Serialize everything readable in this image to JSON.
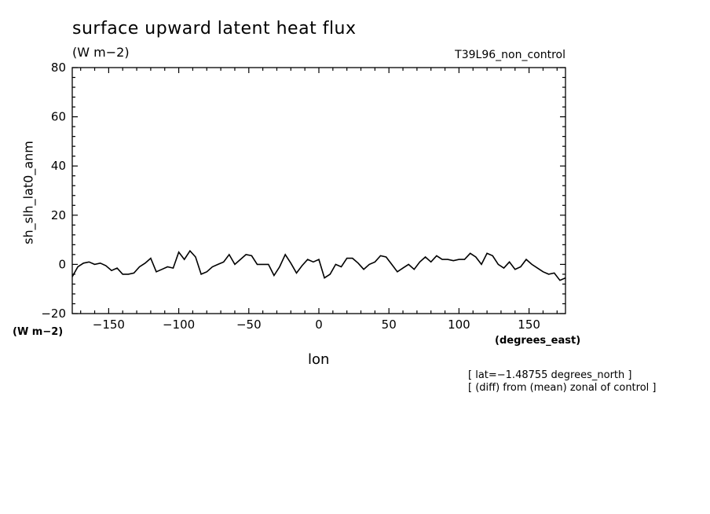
{
  "header": {
    "title": "surface upward latent heat flux",
    "units": "(W m−2)",
    "experiment": "T39L96_non_control"
  },
  "axes": {
    "y_units": "(W m−2)",
    "x_units": "(degrees_east)"
  },
  "notes": [
    "[ lat=−1.48755 degrees_north ]",
    "[ (diff) from (mean) zonal of control ]"
  ],
  "colors": {
    "line": "#000000",
    "background": "#ffffff"
  },
  "chart_data": {
    "type": "line",
    "title": "surface upward latent heat flux",
    "xlabel": "lon",
    "ylabel": "sh_slh_lat0_anm",
    "xlim": [
      -176,
      176
    ],
    "ylim": [
      -20,
      80
    ],
    "x_ticks": [
      -150,
      -100,
      -50,
      0,
      50,
      100,
      150
    ],
    "x_tick_labels": [
      "−150",
      "−100",
      "−50",
      "0",
      "50",
      "100",
      "150"
    ],
    "y_ticks": [
      -20,
      0,
      20,
      40,
      60,
      80
    ],
    "y_tick_labels": [
      "−20",
      "0",
      "20",
      "40",
      "60",
      "80"
    ],
    "grid": false,
    "series": [
      {
        "x": [
          -176,
          -172,
          -168,
          -164,
          -160,
          -156,
          -152,
          -148,
          -144,
          -140,
          -136,
          -132,
          -128,
          -124,
          -120,
          -116,
          -112,
          -108,
          -104,
          -100,
          -96,
          -92,
          -88,
          -84,
          -80,
          -76,
          -72,
          -68,
          -64,
          -60,
          -56,
          -52,
          -48,
          -44,
          -40,
          -36,
          -32,
          -28,
          -24,
          -20,
          -16,
          -12,
          -8,
          -4,
          0,
          4,
          8,
          12,
          16,
          20,
          24,
          28,
          32,
          36,
          40,
          44,
          48,
          52,
          56,
          60,
          64,
          68,
          72,
          76,
          80,
          84,
          88,
          92,
          96,
          100,
          104,
          108,
          112,
          116,
          120,
          124,
          128,
          132,
          136,
          140,
          144,
          148,
          152,
          156,
          160,
          164,
          168,
          172,
          176
        ],
        "values": [
          -5,
          -1,
          0.5,
          1,
          0,
          0.5,
          -0.5,
          -2.5,
          -1.5,
          -4,
          -4,
          -3.5,
          -1,
          0.5,
          2.5,
          -3,
          -2,
          -1,
          -1.5,
          5,
          2,
          5.5,
          3,
          -4,
          -3,
          -1,
          0,
          1,
          4,
          0,
          2,
          4,
          3.5,
          0,
          0,
          0,
          -4.5,
          -1,
          4,
          0.5,
          -3.5,
          -0.5,
          2,
          1,
          2,
          -5.5,
          -4,
          0,
          -1,
          2.5,
          2.5,
          0.5,
          -2,
          0,
          1,
          3.5,
          3,
          0,
          -3,
          -1.5,
          0,
          -2,
          1,
          3,
          1,
          3.5,
          2,
          2,
          1.5,
          2,
          2,
          4.5,
          3,
          0,
          4.5,
          3.5,
          0,
          -1.5,
          1,
          -2,
          -1,
          2,
          0,
          -1.5,
          -3,
          -4,
          -3.5,
          -6.5,
          -5.5
        ]
      }
    ]
  }
}
